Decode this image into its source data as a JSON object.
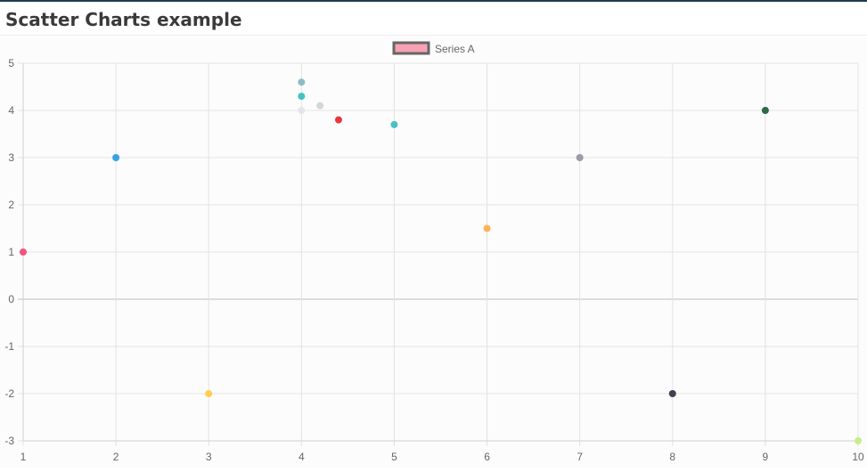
{
  "page": {
    "title": "Scatter Charts example",
    "accent_color": "#1f3b4d"
  },
  "chart_data": {
    "type": "scatter",
    "title": "",
    "xlabel": "",
    "ylabel": "",
    "xlim": [
      1,
      10
    ],
    "ylim": [
      -3,
      5
    ],
    "x_ticks": [
      1,
      2,
      3,
      4,
      5,
      6,
      7,
      8,
      9,
      10
    ],
    "y_ticks": [
      5,
      4,
      3,
      2,
      1,
      0,
      -1,
      -2,
      -3
    ],
    "grid": true,
    "legend": {
      "position": "top-center",
      "entries": [
        {
          "label": "Series A",
          "fill_color": "#f7a1b3",
          "border_color": "#666666"
        }
      ]
    },
    "series": [
      {
        "name": "Series A",
        "points": [
          {
            "x": 1,
            "y": 1,
            "color": "#f2557a"
          },
          {
            "x": 2,
            "y": 3,
            "color": "#36a2eb"
          },
          {
            "x": 3,
            "y": -2,
            "color": "#ffcd56"
          },
          {
            "x": 4,
            "y": 4.6,
            "color": "#8fbcc8"
          },
          {
            "x": 4,
            "y": 4.3,
            "color": "#43c2c2"
          },
          {
            "x": 4,
            "y": 4,
            "color": "#e4e4ea"
          },
          {
            "x": 4.2,
            "y": 4.1,
            "color": "#d6d6d6"
          },
          {
            "x": 4.4,
            "y": 3.8,
            "color": "#e8383d"
          },
          {
            "x": 5,
            "y": 3.7,
            "color": "#4bc0c0"
          },
          {
            "x": 6,
            "y": 1.5,
            "color": "#ffb154"
          },
          {
            "x": 7,
            "y": 3,
            "color": "#9a9ca6"
          },
          {
            "x": 8,
            "y": -2,
            "color": "#3e4150"
          },
          {
            "x": 9,
            "y": 4,
            "color": "#2a6b46"
          },
          {
            "x": 10,
            "y": -3,
            "color": "#c6ee8a"
          }
        ]
      }
    ]
  }
}
